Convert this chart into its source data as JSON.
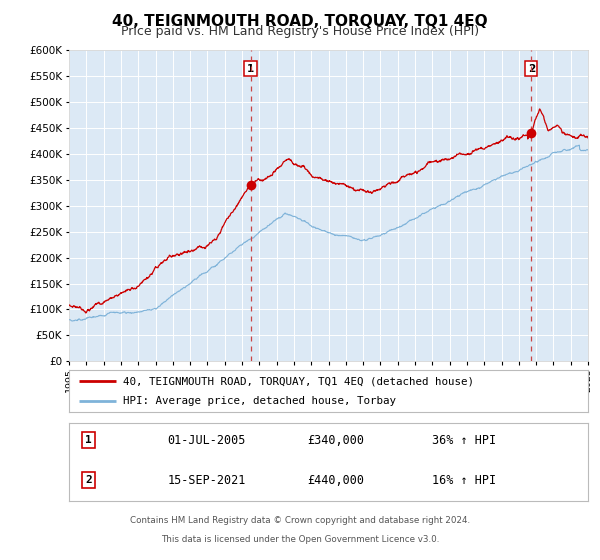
{
  "title": "40, TEIGNMOUTH ROAD, TORQUAY, TQ1 4EQ",
  "subtitle": "Price paid vs. HM Land Registry's House Price Index (HPI)",
  "title_fontsize": 11,
  "subtitle_fontsize": 9,
  "plot_bg_color": "#dce9f5",
  "fig_bg_color": "#ffffff",
  "red_color": "#cc0000",
  "blue_color": "#7fb3d9",
  "grid_color": "#ffffff",
  "marker1_date": 2005.5,
  "marker1_value": 340000,
  "marker2_date": 2021.72,
  "marker2_value": 440000,
  "legend1_label": "40, TEIGNMOUTH ROAD, TORQUAY, TQ1 4EQ (detached house)",
  "legend2_label": "HPI: Average price, detached house, Torbay",
  "annotation1": [
    "1",
    "01-JUL-2005",
    "£340,000",
    "36% ↑ HPI"
  ],
  "annotation2": [
    "2",
    "15-SEP-2021",
    "£440,000",
    "16% ↑ HPI"
  ],
  "footer1": "Contains HM Land Registry data © Crown copyright and database right 2024.",
  "footer2": "This data is licensed under the Open Government Licence v3.0.",
  "ylim": [
    0,
    600000
  ],
  "xlim": [
    1995,
    2025
  ],
  "yticks": [
    0,
    50000,
    100000,
    150000,
    200000,
    250000,
    300000,
    350000,
    400000,
    450000,
    500000,
    550000,
    600000
  ]
}
